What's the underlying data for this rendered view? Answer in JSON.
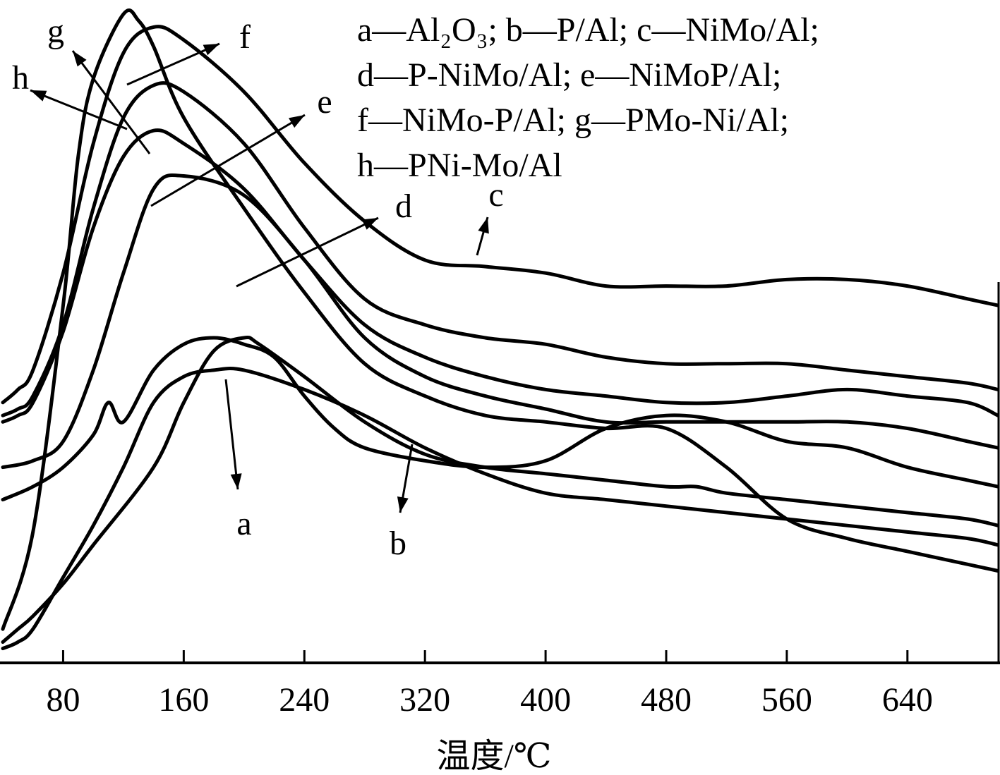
{
  "chart_data": {
    "type": "line",
    "title": "",
    "xlabel": "温度/℃",
    "ylabel": "",
    "xlim": [
      40,
      700
    ],
    "ylim": [
      0,
      100
    ],
    "x_ticks": [
      80,
      160,
      240,
      320,
      400,
      480,
      560,
      640
    ],
    "x_tick_labels": [
      "80",
      "160",
      "240",
      "320",
      "400",
      "480",
      "560",
      "640"
    ],
    "grid": false,
    "legend_position": "top-right",
    "legend_lines": [
      "a—Al₂O₃; b—P/Al; c—NiMo/Al;",
      "d—P-NiMo/Al; e—NiMoP/Al;",
      "f—NiMo-P/Al; g—PMo-Ni/Al;",
      "h—PNi-Mo/Al"
    ],
    "series": [
      {
        "name": "a",
        "x": [
          40,
          50,
          60,
          80,
          100,
          120,
          140,
          160,
          180,
          200,
          240,
          280,
          320,
          360,
          400,
          440,
          480,
          520,
          560,
          600,
          640,
          680,
          700
        ],
        "values": [
          2,
          3,
          5,
          13,
          21,
          30,
          40,
          44,
          45,
          45,
          42,
          38,
          33,
          29,
          26,
          25,
          24,
          23,
          22,
          21,
          20,
          19,
          18
        ]
      },
      {
        "name": "b",
        "x": [
          40,
          60,
          80,
          100,
          110,
          120,
          140,
          160,
          180,
          200,
          220,
          240,
          260,
          280,
          320,
          360,
          400,
          440,
          480,
          520,
          560,
          600,
          640,
          680,
          700
        ],
        "values": [
          25,
          27,
          30,
          35,
          40,
          37,
          45,
          49,
          50,
          49,
          47,
          41,
          36,
          33,
          31,
          30,
          31,
          36,
          38,
          37,
          34,
          33,
          30,
          28,
          27
        ]
      },
      {
        "name": "c",
        "x": [
          40,
          50,
          60,
          80,
          100,
          120,
          140,
          160,
          200,
          240,
          280,
          320,
          360,
          400,
          440,
          480,
          520,
          560,
          600,
          640,
          680,
          700
        ],
        "values": [
          40,
          42,
          45,
          60,
          80,
          94,
          98,
          96,
          88,
          77,
          68,
          62,
          61,
          60,
          58,
          58,
          58,
          59,
          59,
          58,
          56,
          55
        ]
      },
      {
        "name": "d",
        "x": [
          40,
          50,
          60,
          80,
          100,
          140,
          160,
          180,
          200,
          210,
          240,
          280,
          320,
          360,
          400,
          440,
          480,
          500,
          520,
          560,
          600,
          640,
          680,
          700
        ],
        "values": [
          3,
          5,
          7,
          12,
          18,
          30,
          40,
          48,
          50,
          49,
          44,
          37,
          32,
          30,
          29,
          28,
          27,
          27,
          26,
          25,
          24,
          23,
          22,
          21
        ]
      },
      {
        "name": "e",
        "x": [
          40,
          60,
          80,
          100,
          120,
          140,
          160,
          200,
          240,
          280,
          320,
          360,
          400,
          440,
          480,
          520,
          560,
          600,
          640,
          680,
          700
        ],
        "values": [
          30,
          31,
          34,
          45,
          60,
          73,
          75,
          72,
          62,
          50,
          44,
          41,
          39,
          37,
          37,
          37,
          37,
          37,
          36,
          34,
          33
        ]
      },
      {
        "name": "f",
        "x": [
          40,
          50,
          60,
          80,
          100,
          120,
          140,
          160,
          200,
          240,
          280,
          320,
          360,
          400,
          440,
          480,
          520,
          560,
          600,
          640,
          680,
          700
        ],
        "values": [
          38,
          39,
          41,
          52,
          70,
          84,
          89,
          88,
          80,
          67,
          56,
          52,
          50,
          49,
          47,
          46,
          46,
          46,
          45,
          44,
          43,
          42
        ]
      },
      {
        "name": "g",
        "x": [
          40,
          60,
          80,
          90,
          100,
          120,
          130,
          140,
          160,
          200,
          240,
          280,
          320,
          360,
          400,
          440,
          480,
          520,
          560,
          600,
          640,
          680,
          700
        ],
        "values": [
          5,
          20,
          55,
          78,
          90,
          100,
          99,
          95,
          84,
          70,
          57,
          46,
          41,
          38,
          37,
          36,
          36,
          30,
          22,
          19,
          17,
          15,
          14
        ]
      },
      {
        "name": "h",
        "x": [
          40,
          50,
          60,
          80,
          100,
          120,
          140,
          160,
          200,
          240,
          280,
          320,
          360,
          400,
          440,
          480,
          520,
          560,
          600,
          640,
          680,
          700
        ],
        "values": [
          37,
          38,
          40,
          51,
          67,
          78,
          82,
          80,
          73,
          62,
          52,
          47,
          44,
          42,
          41,
          40,
          40,
          41,
          42,
          41,
          40,
          38
        ]
      }
    ],
    "curve_labels": [
      "a",
      "b",
      "c",
      "d",
      "e",
      "f",
      "g",
      "h"
    ]
  }
}
